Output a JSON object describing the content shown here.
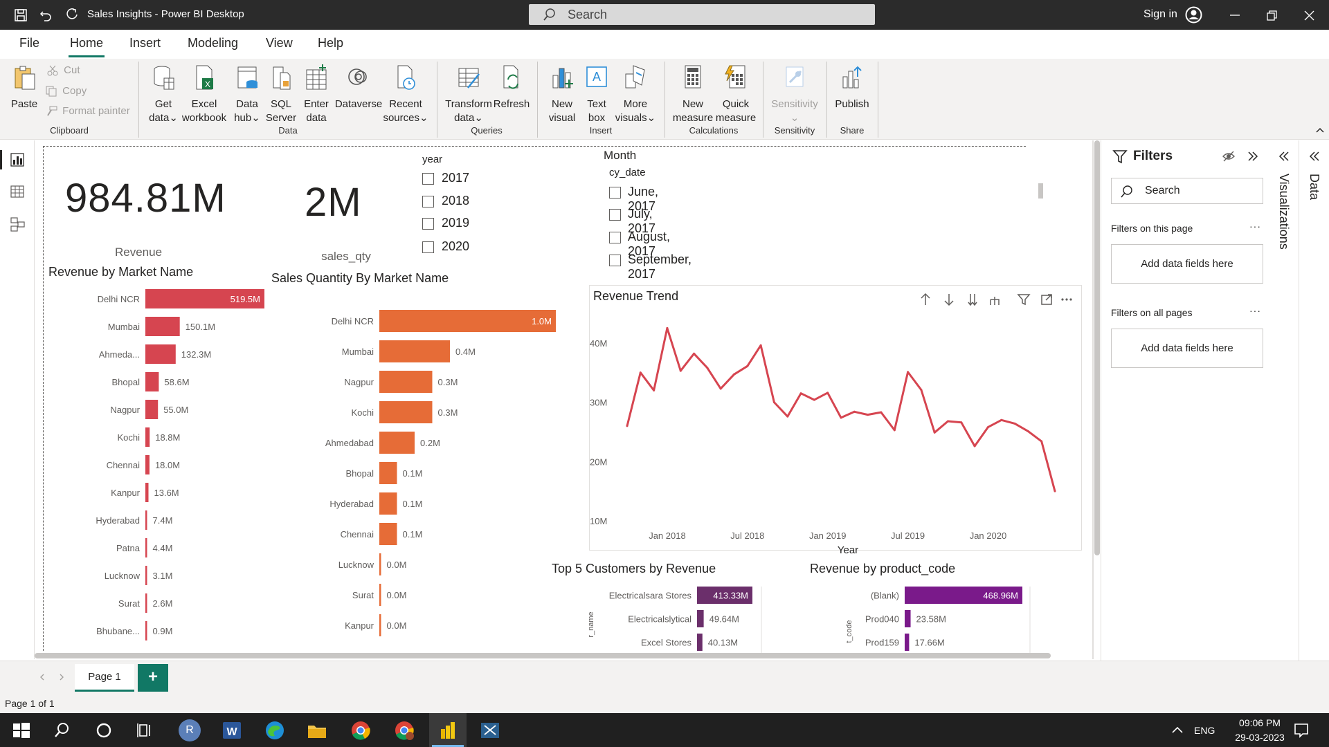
{
  "titlebar": {
    "app_title": "Sales Insights - Power BI Desktop",
    "search_placeholder": "Search",
    "sign_in": "Sign in"
  },
  "menu": {
    "file": "File",
    "home": "Home",
    "insert": "Insert",
    "modeling": "Modeling",
    "view": "View",
    "help": "Help"
  },
  "ribbon": {
    "paste": "Paste",
    "cut": "Cut",
    "copy": "Copy",
    "format_painter": "Format painter",
    "clipboard": "Clipboard",
    "get_data_1": "Get",
    "get_data_2": "data",
    "excel_1": "Excel",
    "excel_2": "workbook",
    "hub_1": "Data",
    "hub_2": "hub",
    "sql_1": "SQL",
    "sql_2": "Server",
    "enter_1": "Enter",
    "enter_2": "data",
    "dataverse": "Dataverse",
    "recent_1": "Recent",
    "recent_2": "sources",
    "data_group": "Data",
    "transform_1": "Transform",
    "transform_2": "data",
    "refresh": "Refresh",
    "queries_group": "Queries",
    "newvisual_1": "New",
    "newvisual_2": "visual",
    "textbox_1": "Text",
    "textbox_2": "box",
    "more_1": "More",
    "more_2": "visuals",
    "insert_group": "Insert",
    "newmeasure_1": "New",
    "newmeasure_2": "measure",
    "quick_1": "Quick",
    "quick_2": "measure",
    "calc_group": "Calculations",
    "sensitivity": "Sensitivity",
    "sensitivity_group": "Sensitivity",
    "publish": "Publish",
    "share_group": "Share"
  },
  "kpis": {
    "revenue_value": "984.81M",
    "revenue_label": "Revenue",
    "qty_value": "2M",
    "qty_label": "sales_qty"
  },
  "year_slicer": {
    "title": "year",
    "items": [
      "2017",
      "2018",
      "2019",
      "2020"
    ]
  },
  "month_slicer": {
    "title": "Month",
    "subtitle": "cy_date",
    "items": [
      "June, 2017",
      "July, 2017",
      "August, 2017",
      "September, 2017"
    ]
  },
  "chart_data": [
    {
      "type": "bar",
      "title": "Revenue by Market Name",
      "categories": [
        "Delhi NCR",
        "Mumbai",
        "Ahmeda...",
        "Bhopal",
        "Nagpur",
        "Kochi",
        "Chennai",
        "Kanpur",
        "Hyderabad",
        "Patna",
        "Lucknow",
        "Surat",
        "Bhubane..."
      ],
      "values": [
        519.5,
        150.1,
        132.3,
        58.6,
        55.0,
        18.8,
        18.0,
        13.6,
        7.4,
        4.4,
        3.1,
        2.6,
        0.9
      ],
      "labels": [
        "519.5M",
        "150.1M",
        "132.3M",
        "58.6M",
        "55.0M",
        "18.8M",
        "18.0M",
        "13.6M",
        "7.4M",
        "4.4M",
        "3.1M",
        "2.6M",
        "0.9M"
      ],
      "color": "#d64550"
    },
    {
      "type": "bar",
      "title": "Sales Quantity By Market Name",
      "categories": [
        "Delhi NCR",
        "Mumbai",
        "Nagpur",
        "Kochi",
        "Ahmedabad",
        "Bhopal",
        "Hyderabad",
        "Chennai",
        "Lucknow",
        "Surat",
        "Kanpur"
      ],
      "values": [
        1.0,
        0.4,
        0.3,
        0.3,
        0.2,
        0.1,
        0.1,
        0.1,
        0.0,
        0.0,
        0.0
      ],
      "labels": [
        "1.0M",
        "0.4M",
        "0.3M",
        "0.3M",
        "0.2M",
        "0.1M",
        "0.1M",
        "0.1M",
        "0.0M",
        "0.0M",
        "0.0M"
      ],
      "color": "#e66c37"
    },
    {
      "type": "line",
      "title": "Revenue Trend",
      "xlabel": "Year",
      "ylabel": "",
      "x_ticks": [
        "Jan 2018",
        "Jul 2018",
        "Jan 2019",
        "Jul 2019",
        "Jan 2020"
      ],
      "y_ticks": [
        "40M",
        "30M",
        "20M",
        "10M"
      ],
      "ylim": [
        10,
        45
      ],
      "x": [
        "2017-10",
        "2017-11",
        "2017-12",
        "2018-01",
        "2018-02",
        "2018-03",
        "2018-04",
        "2018-05",
        "2018-06",
        "2018-07",
        "2018-08",
        "2018-09",
        "2018-10",
        "2018-11",
        "2018-12",
        "2019-01",
        "2019-02",
        "2019-03",
        "2019-04",
        "2019-05",
        "2019-06",
        "2019-07",
        "2019-08",
        "2019-09",
        "2019-10",
        "2019-11",
        "2019-12",
        "2020-01",
        "2020-02",
        "2020-03",
        "2020-04",
        "2020-05",
        "2020-06"
      ],
      "values": [
        26,
        35,
        32,
        42.5,
        35.3,
        38.2,
        35.8,
        32.3,
        34.7,
        36.1,
        39.6,
        30,
        27.6,
        31.5,
        30.4,
        31.6,
        27.4,
        28.4,
        27.9,
        28.3,
        25.3,
        35.1,
        32.1,
        24.9,
        26.8,
        26.6,
        22.6,
        25.8,
        27,
        26.4,
        25.1,
        23.4,
        15
      ],
      "color": "#d64550"
    },
    {
      "type": "bar",
      "title": "Top 5 Customers by Revenue",
      "ylabel": "r_name",
      "categories": [
        "Electricalsara Stores",
        "Electricalslytical",
        "Excel Stores"
      ],
      "values": [
        413.33,
        49.64,
        40.13
      ],
      "labels": [
        "413.33M",
        "49.64M",
        "40.13M"
      ],
      "color": "#6b2f6b"
    },
    {
      "type": "bar",
      "title": "Revenue by product_code",
      "ylabel": "t_code",
      "categories": [
        "(Blank)",
        "Prod040",
        "Prod159"
      ],
      "values": [
        468.96,
        23.58,
        17.66
      ],
      "labels": [
        "468.96M",
        "23.58M",
        "17.66M"
      ],
      "color": "#7a1a8a"
    }
  ],
  "filters": {
    "title": "Filters",
    "search": "Search",
    "on_page": "Filters on this page",
    "on_all": "Filters on all pages",
    "add_fields": "Add data fields here"
  },
  "side_panes": {
    "visualizations": "Visualizations",
    "data": "Data"
  },
  "pages": {
    "page1": "Page 1",
    "add": "+"
  },
  "status": {
    "page_count": "Page 1 of 1"
  },
  "taskbar": {
    "lang": "ENG",
    "time": "09:06 PM",
    "date": "29-03-2023",
    "avatar_letter": "R"
  }
}
